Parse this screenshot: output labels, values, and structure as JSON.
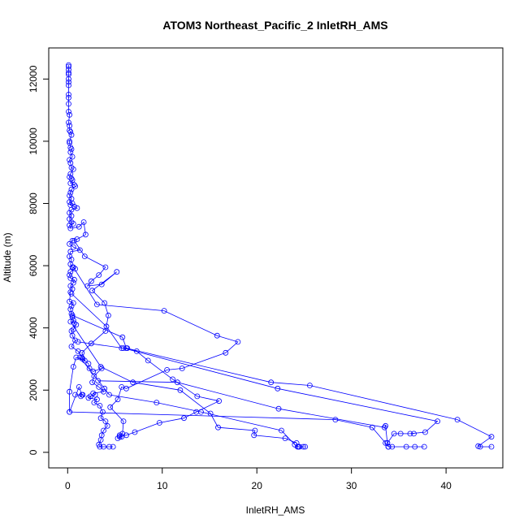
{
  "chart_data": {
    "type": "line",
    "title": "ATOM3 Northeast_Pacific_2 InletRH_AMS",
    "xlabel": "InletRH_AMS",
    "ylabel": "Altitude (m)",
    "xlim": [
      -2,
      46
    ],
    "ylim": [
      -500,
      13000
    ],
    "x_ticks": [
      0,
      10,
      20,
      30,
      40
    ],
    "y_ticks": [
      0,
      2000,
      4000,
      6000,
      8000,
      10000,
      12000
    ],
    "grid": false,
    "marker": "open-circle",
    "series_color": "#0000ff",
    "series": [
      {
        "points": [
          [
            0.1,
            12450
          ],
          [
            0.1,
            12400
          ],
          [
            0.1,
            12300
          ],
          [
            0.1,
            12200
          ],
          [
            0.1,
            12150
          ],
          [
            0.1,
            12000
          ],
          [
            0.1,
            11900
          ],
          [
            0.1,
            11800
          ],
          [
            0.1,
            11500
          ],
          [
            0.1,
            11400
          ],
          [
            0.1,
            11200
          ],
          [
            0.1,
            10950
          ],
          [
            0.2,
            10850
          ],
          [
            0.1,
            10600
          ],
          [
            0.2,
            10500
          ],
          [
            0.2,
            10350
          ],
          [
            0.3,
            10300
          ],
          [
            0.4,
            10200
          ],
          [
            0.2,
            10000
          ],
          [
            0.2,
            9950
          ],
          [
            0.3,
            9800
          ],
          [
            0.4,
            9750
          ],
          [
            0.3,
            9650
          ],
          [
            0.5,
            9500
          ],
          [
            0.2,
            9400
          ],
          [
            0.3,
            9300
          ],
          [
            0.4,
            9150
          ],
          [
            0.6,
            9100
          ],
          [
            0.3,
            8950
          ],
          [
            0.2,
            8850
          ],
          [
            0.4,
            8800
          ],
          [
            0.5,
            8750
          ],
          [
            0.3,
            8650
          ],
          [
            0.7,
            8600
          ],
          [
            0.8,
            8550
          ],
          [
            0.4,
            8450
          ],
          [
            0.3,
            8350
          ],
          [
            0.2,
            8250
          ],
          [
            0.4,
            8150
          ],
          [
            0.2,
            8050
          ],
          [
            0.5,
            8000
          ],
          [
            0.3,
            7950
          ],
          [
            0.7,
            7900
          ],
          [
            1.0,
            7850
          ],
          [
            0.4,
            7800
          ],
          [
            0.2,
            7700
          ],
          [
            0.4,
            7600
          ],
          [
            0.2,
            7500
          ],
          [
            0.4,
            7400
          ],
          [
            0.6,
            7350
          ],
          [
            0.2,
            7300
          ],
          [
            0.3,
            7200
          ],
          [
            1.2,
            7250
          ],
          [
            1.7,
            7400
          ],
          [
            1.9,
            7000
          ],
          [
            1.0,
            6850
          ],
          [
            0.5,
            6800
          ],
          [
            0.2,
            6700
          ],
          [
            0.6,
            6600
          ],
          [
            1.3,
            6500
          ],
          [
            0.3,
            6450
          ],
          [
            0.2,
            6300
          ],
          [
            0.4,
            6200
          ],
          [
            0.3,
            6050
          ],
          [
            0.5,
            5950
          ],
          [
            0.8,
            5900
          ],
          [
            0.3,
            5800
          ],
          [
            0.2,
            5700
          ],
          [
            0.3,
            5600
          ],
          [
            0.7,
            5550
          ],
          [
            0.6,
            5450
          ],
          [
            0.3,
            5350
          ],
          [
            0.5,
            5250
          ],
          [
            0.3,
            5150
          ],
          [
            0.2,
            4850
          ],
          [
            0.6,
            4800
          ],
          [
            0.4,
            4700
          ],
          [
            0.3,
            4600
          ],
          [
            0.4,
            4450
          ],
          [
            0.5,
            4350
          ],
          [
            0.6,
            4250
          ],
          [
            0.7,
            4150
          ],
          [
            0.9,
            4100
          ],
          [
            0.6,
            3950
          ],
          [
            0.4,
            3900
          ],
          [
            0.5,
            3750
          ],
          [
            0.8,
            3600
          ],
          [
            0.4,
            3400
          ],
          [
            1.1,
            3250
          ],
          [
            1.5,
            3050
          ],
          [
            1.6,
            3000
          ],
          [
            2.2,
            2850
          ],
          [
            2.3,
            2700
          ],
          [
            2.7,
            2600
          ],
          [
            3.6,
            2700
          ],
          [
            2.8,
            2450
          ],
          [
            2.6,
            2250
          ],
          [
            3.3,
            2100
          ],
          [
            3.8,
            1950
          ],
          [
            2.7,
            1900
          ],
          [
            2.9,
            1850
          ],
          [
            2.4,
            1800
          ],
          [
            2.2,
            1750
          ],
          [
            3.1,
            1700
          ],
          [
            2.8,
            1600
          ],
          [
            3.4,
            1500
          ],
          [
            3.7,
            1300
          ],
          [
            3.5,
            1100
          ],
          [
            4.0,
            1000
          ],
          [
            4.2,
            850
          ],
          [
            3.8,
            700
          ],
          [
            3.6,
            550
          ],
          [
            3.5,
            400
          ],
          [
            3.3,
            250
          ],
          [
            3.4,
            180
          ],
          [
            3.8,
            180
          ],
          [
            4.4,
            180
          ],
          [
            4.8,
            180
          ]
        ]
      },
      {
        "points": [
          [
            0.7,
            6800
          ],
          [
            1.8,
            6300
          ],
          [
            4.0,
            5950
          ],
          [
            3.3,
            5700
          ],
          [
            2.5,
            5500
          ],
          [
            2.1,
            5350
          ],
          [
            3.6,
            5400
          ],
          [
            5.2,
            5800
          ],
          [
            2.6,
            5200
          ],
          [
            3.9,
            4800
          ],
          [
            4.3,
            4400
          ],
          [
            4.0,
            3900
          ],
          [
            2.5,
            3500
          ],
          [
            1.5,
            3200
          ],
          [
            1.8,
            2950
          ],
          [
            0.9,
            3050
          ],
          [
            0.6,
            2750
          ],
          [
            0.2,
            1950
          ],
          [
            0.2,
            1300
          ],
          [
            1.2,
            2100
          ],
          [
            1.5,
            1850
          ],
          [
            0.8,
            1850
          ],
          [
            1.6,
            1850
          ],
          [
            1.4,
            1800
          ]
        ]
      },
      {
        "points": [
          [
            0.6,
            5950
          ],
          [
            3.1,
            4750
          ],
          [
            10.2,
            4550
          ],
          [
            15.8,
            3750
          ],
          [
            18.0,
            3550
          ],
          [
            16.7,
            3200
          ],
          [
            12.1,
            2700
          ],
          [
            10.5,
            2650
          ],
          [
            6.2,
            2050
          ],
          [
            5.7,
            2100
          ],
          [
            5.3,
            1700
          ],
          [
            4.5,
            1450
          ],
          [
            5.9,
            1000
          ],
          [
            5.8,
            600
          ],
          [
            5.5,
            550
          ],
          [
            5.7,
            500
          ],
          [
            5.3,
            450
          ]
        ]
      },
      {
        "points": [
          [
            0.4,
            5100
          ],
          [
            4.1,
            4050
          ],
          [
            5.7,
            3350
          ],
          [
            6.3,
            3350
          ],
          [
            7.3,
            3250
          ],
          [
            8.5,
            2950
          ],
          [
            11.1,
            2350
          ],
          [
            13.7,
            1800
          ],
          [
            16.0,
            1650
          ],
          [
            13.6,
            1300
          ],
          [
            12.3,
            1100
          ],
          [
            9.7,
            950
          ],
          [
            7.1,
            650
          ],
          [
            6.2,
            550
          ],
          [
            5.5,
            500
          ]
        ]
      },
      {
        "points": [
          [
            0.5,
            4400
          ],
          [
            5.8,
            3700
          ],
          [
            6.2,
            3350
          ],
          [
            21.5,
            2250
          ],
          [
            25.6,
            2150
          ],
          [
            41.2,
            1050
          ],
          [
            44.8,
            500
          ],
          [
            43.4,
            200
          ],
          [
            43.6,
            180
          ],
          [
            44.8,
            180
          ]
        ]
      },
      {
        "points": [
          [
            1.1,
            3550
          ],
          [
            5.9,
            3350
          ],
          [
            22.2,
            2050
          ],
          [
            39.1,
            1000
          ],
          [
            37.8,
            650
          ],
          [
            36.2,
            600
          ],
          [
            36.6,
            600
          ],
          [
            35.2,
            600
          ],
          [
            34.5,
            600
          ],
          [
            33.8,
            300
          ],
          [
            33.9,
            180
          ],
          [
            34.3,
            180
          ],
          [
            35.8,
            180
          ],
          [
            36.7,
            180
          ],
          [
            37.7,
            180
          ]
        ]
      },
      {
        "points": [
          [
            3.2,
            2300
          ],
          [
            11.6,
            2250
          ],
          [
            22.3,
            1400
          ],
          [
            33.5,
            800
          ],
          [
            33.6,
            850
          ],
          [
            33.8,
            300
          ],
          [
            33.9,
            180
          ]
        ]
      },
      {
        "points": [
          [
            0.3,
            4200
          ],
          [
            3.5,
            2750
          ],
          [
            6.9,
            2250
          ],
          [
            11.9,
            2000
          ],
          [
            15.1,
            1250
          ],
          [
            15.9,
            800
          ],
          [
            19.8,
            700
          ],
          [
            19.7,
            550
          ],
          [
            23.0,
            450
          ],
          [
            24.2,
            300
          ],
          [
            24.3,
            180
          ],
          [
            24.5,
            180
          ],
          [
            24.9,
            180
          ],
          [
            25.1,
            180
          ]
        ]
      },
      {
        "points": [
          [
            1.3,
            3050
          ],
          [
            3.9,
            2050
          ],
          [
            4.4,
            1850
          ],
          [
            9.4,
            1600
          ],
          [
            14.1,
            1300
          ],
          [
            22.6,
            700
          ],
          [
            24.0,
            250
          ],
          [
            24.4,
            180
          ]
        ]
      },
      {
        "points": [
          [
            0.2,
            1300
          ],
          [
            28.3,
            1050
          ],
          [
            32.2,
            800
          ],
          [
            33.6,
            300
          ],
          [
            33.9,
            180
          ]
        ]
      }
    ]
  }
}
